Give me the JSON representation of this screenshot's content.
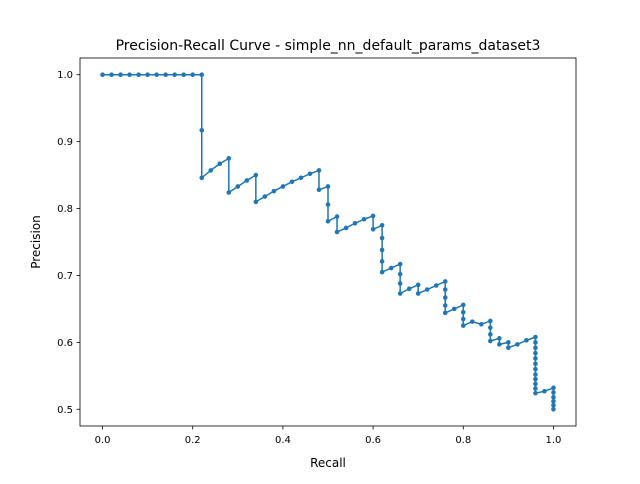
{
  "chart_data": {
    "type": "line",
    "title": "Precision-Recall Curve - simple_nn_default_params_dataset3",
    "xlabel": "Recall",
    "ylabel": "Precision",
    "xlim": [
      -0.05,
      1.05
    ],
    "ylim": [
      0.475,
      1.025
    ],
    "xticks": [
      "0.0",
      "0.2",
      "0.4",
      "0.6",
      "0.8",
      "1.0"
    ],
    "yticks": [
      "0.5",
      "0.6",
      "0.7",
      "0.8",
      "0.9",
      "1.0"
    ],
    "grid": false,
    "legend": "none",
    "series": [
      {
        "color": "#1f77b4",
        "marker": "circle",
        "points": [
          [
            0.0,
            1.0
          ],
          [
            0.02,
            1.0
          ],
          [
            0.04,
            1.0
          ],
          [
            0.06,
            1.0
          ],
          [
            0.08,
            1.0
          ],
          [
            0.1,
            1.0
          ],
          [
            0.12,
            1.0
          ],
          [
            0.14,
            1.0
          ],
          [
            0.16,
            1.0
          ],
          [
            0.18,
            1.0
          ],
          [
            0.2,
            1.0
          ],
          [
            0.22,
            1.0
          ],
          [
            0.22,
            0.917
          ],
          [
            0.22,
            0.846
          ],
          [
            0.24,
            0.857
          ],
          [
            0.26,
            0.867
          ],
          [
            0.28,
            0.875
          ],
          [
            0.28,
            0.824
          ],
          [
            0.3,
            0.833
          ],
          [
            0.32,
            0.842
          ],
          [
            0.34,
            0.85
          ],
          [
            0.34,
            0.81
          ],
          [
            0.36,
            0.818
          ],
          [
            0.38,
            0.826
          ],
          [
            0.4,
            0.833
          ],
          [
            0.42,
            0.84
          ],
          [
            0.44,
            0.846
          ],
          [
            0.46,
            0.852
          ],
          [
            0.48,
            0.857
          ],
          [
            0.48,
            0.828
          ],
          [
            0.5,
            0.833
          ],
          [
            0.5,
            0.806
          ],
          [
            0.5,
            0.781
          ],
          [
            0.52,
            0.788
          ],
          [
            0.52,
            0.765
          ],
          [
            0.54,
            0.771
          ],
          [
            0.56,
            0.778
          ],
          [
            0.58,
            0.784
          ],
          [
            0.6,
            0.789
          ],
          [
            0.6,
            0.769
          ],
          [
            0.62,
            0.775
          ],
          [
            0.62,
            0.756
          ],
          [
            0.62,
            0.738
          ],
          [
            0.62,
            0.721
          ],
          [
            0.62,
            0.705
          ],
          [
            0.64,
            0.711
          ],
          [
            0.66,
            0.717
          ],
          [
            0.66,
            0.702
          ],
          [
            0.66,
            0.688
          ],
          [
            0.66,
            0.673
          ],
          [
            0.68,
            0.68
          ],
          [
            0.7,
            0.686
          ],
          [
            0.7,
            0.673
          ],
          [
            0.72,
            0.679
          ],
          [
            0.74,
            0.685
          ],
          [
            0.76,
            0.691
          ],
          [
            0.76,
            0.679
          ],
          [
            0.76,
            0.667
          ],
          [
            0.76,
            0.655
          ],
          [
            0.76,
            0.644
          ],
          [
            0.78,
            0.65
          ],
          [
            0.8,
            0.656
          ],
          [
            0.8,
            0.645
          ],
          [
            0.8,
            0.635
          ],
          [
            0.8,
            0.625
          ],
          [
            0.82,
            0.631
          ],
          [
            0.84,
            0.627
          ],
          [
            0.86,
            0.632
          ],
          [
            0.86,
            0.622
          ],
          [
            0.86,
            0.612
          ],
          [
            0.86,
            0.602
          ],
          [
            0.88,
            0.606
          ],
          [
            0.88,
            0.597
          ],
          [
            0.9,
            0.6
          ],
          [
            0.9,
            0.592
          ],
          [
            0.92,
            0.597
          ],
          [
            0.94,
            0.603
          ],
          [
            0.96,
            0.608
          ],
          [
            0.96,
            0.6
          ],
          [
            0.96,
            0.592
          ],
          [
            0.96,
            0.584
          ],
          [
            0.96,
            0.576
          ],
          [
            0.96,
            0.568
          ],
          [
            0.96,
            0.56
          ],
          [
            0.96,
            0.552
          ],
          [
            0.96,
            0.545
          ],
          [
            0.96,
            0.538
          ],
          [
            0.96,
            0.531
          ],
          [
            0.96,
            0.524
          ],
          [
            0.98,
            0.527
          ],
          [
            1.0,
            0.532
          ],
          [
            1.0,
            0.525
          ],
          [
            1.0,
            0.518
          ],
          [
            1.0,
            0.512
          ],
          [
            1.0,
            0.506
          ],
          [
            1.0,
            0.5
          ]
        ]
      }
    ]
  }
}
